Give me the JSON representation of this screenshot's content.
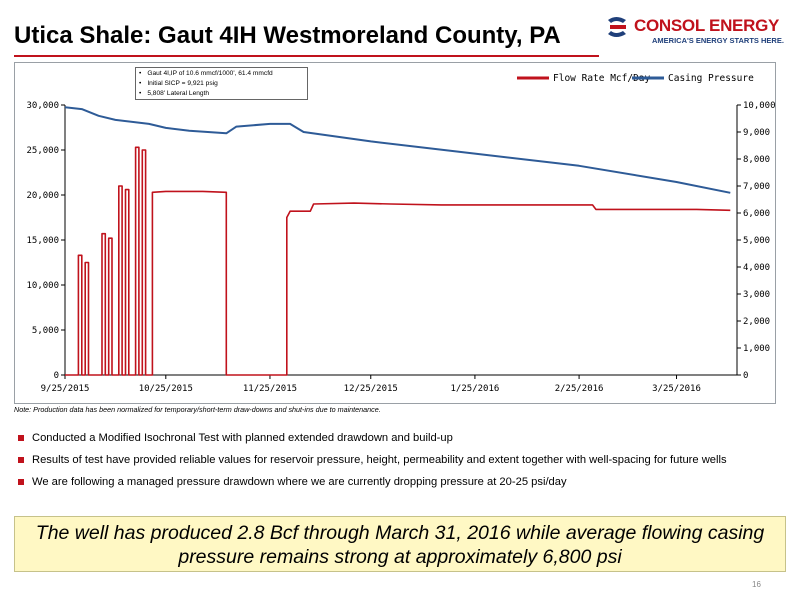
{
  "slide": {
    "title": "Utica Shale: Gaut 4IH Westmoreland County, PA",
    "logo_name": "CONSOL ENERGY",
    "logo_tagline": "AMERICA'S ENERGY STARTS HERE.",
    "note": "Note:  Production data has been normalized for temporary/short-term draw-downs and shut-ins due to maintenance.",
    "bullets": [
      "Conducted a Modified Isochronal Test with planned extended drawdown and build-up",
      "Results of test have provided reliable values for reservoir pressure, height, permeability and extent together with well-spacing for future wells",
      "We are following a managed pressure drawdown where we are currently dropping pressure at 20-25 psi/day"
    ],
    "callout_line1": "The well has produced 2.8 Bcf through March 31, 2016 while average flowing casing",
    "callout_line2": "pressure remains strong at approximately 6,800 psi",
    "page_number": "16",
    "colors": {
      "accent": "#c0121c",
      "navy": "#1f3f7a",
      "callout_bg": "#fff8c4"
    }
  },
  "chart_data": {
    "type": "line",
    "title": "",
    "annotation": [
      "Gaut 4I,IP of 10.6 mmcf/1000', 61.4 mmcfd",
      "Initial SICP = 9,921 psig",
      "5,808' Lateral Length"
    ],
    "x_ticks": [
      "9/25/2015",
      "10/25/2015",
      "11/25/2015",
      "12/25/2015",
      "1/25/2016",
      "2/25/2016",
      "3/25/2016"
    ],
    "x_range": [
      "2015-09-25",
      "2016-04-12"
    ],
    "y_left": {
      "ticks": [
        "0",
        "5,000",
        "10,000",
        "15,000",
        "20,000",
        "25,000",
        "30,000"
      ],
      "min": 0,
      "max": 30000
    },
    "y_right": {
      "ticks": [
        "0",
        "1,000",
        "2,000",
        "3,000",
        "4,000",
        "5,000",
        "6,000",
        "7,000",
        "8,000",
        "9,000",
        "10,000"
      ],
      "min": 0,
      "max": 10000
    },
    "legend_position": "top-right",
    "series": [
      {
        "name": "Flow Rate Mcf/Day",
        "axis": "left",
        "color": "#c0121c",
        "points": [
          [
            "2015-09-25",
            0
          ],
          [
            "2015-09-29",
            0
          ],
          [
            "2015-09-29",
            13300
          ],
          [
            "2015-09-30",
            13300
          ],
          [
            "2015-09-30",
            0
          ],
          [
            "2015-10-01",
            0
          ],
          [
            "2015-10-01",
            12500
          ],
          [
            "2015-10-02",
            12500
          ],
          [
            "2015-10-02",
            0
          ],
          [
            "2015-10-06",
            0
          ],
          [
            "2015-10-06",
            15700
          ],
          [
            "2015-10-07",
            15700
          ],
          [
            "2015-10-07",
            0
          ],
          [
            "2015-10-08",
            0
          ],
          [
            "2015-10-08",
            15200
          ],
          [
            "2015-10-09",
            15200
          ],
          [
            "2015-10-09",
            0
          ],
          [
            "2015-10-11",
            0
          ],
          [
            "2015-10-11",
            21000
          ],
          [
            "2015-10-12",
            21000
          ],
          [
            "2015-10-12",
            0
          ],
          [
            "2015-10-13",
            0
          ],
          [
            "2015-10-13",
            20600
          ],
          [
            "2015-10-14",
            20600
          ],
          [
            "2015-10-14",
            0
          ],
          [
            "2015-10-16",
            0
          ],
          [
            "2015-10-16",
            25300
          ],
          [
            "2015-10-17",
            25300
          ],
          [
            "2015-10-17",
            0
          ],
          [
            "2015-10-18",
            0
          ],
          [
            "2015-10-18",
            25000
          ],
          [
            "2015-10-19",
            25000
          ],
          [
            "2015-10-19",
            0
          ],
          [
            "2015-10-21",
            0
          ],
          [
            "2015-10-21",
            20300
          ],
          [
            "2015-10-25",
            20400
          ],
          [
            "2015-11-05",
            20400
          ],
          [
            "2015-11-12",
            20300
          ],
          [
            "2015-11-12",
            0
          ],
          [
            "2015-11-30",
            0
          ],
          [
            "2015-11-30",
            17500
          ],
          [
            "2015-12-01",
            18200
          ],
          [
            "2015-12-07",
            18200
          ],
          [
            "2015-12-08",
            19000
          ],
          [
            "2015-12-20",
            19100
          ],
          [
            "2015-12-31",
            19000
          ],
          [
            "2016-01-15",
            18900
          ],
          [
            "2016-01-31",
            18900
          ],
          [
            "2016-02-15",
            18900
          ],
          [
            "2016-02-29",
            18900
          ],
          [
            "2016-03-01",
            18400
          ],
          [
            "2016-03-15",
            18400
          ],
          [
            "2016-03-31",
            18400
          ],
          [
            "2016-04-10",
            18300
          ]
        ]
      },
      {
        "name": "Casing Pressure",
        "axis": "right",
        "color": "#2e5b97",
        "points": [
          [
            "2015-09-25",
            9920
          ],
          [
            "2015-09-30",
            9850
          ],
          [
            "2015-10-05",
            9600
          ],
          [
            "2015-10-10",
            9450
          ],
          [
            "2015-10-20",
            9300
          ],
          [
            "2015-10-25",
            9150
          ],
          [
            "2015-11-01",
            9050
          ],
          [
            "2015-11-12",
            8950
          ],
          [
            "2015-11-15",
            9200
          ],
          [
            "2015-11-25",
            9300
          ],
          [
            "2015-12-01",
            9300
          ],
          [
            "2015-12-05",
            9000
          ],
          [
            "2015-12-25",
            8650
          ],
          [
            "2016-01-25",
            8200
          ],
          [
            "2016-02-25",
            7750
          ],
          [
            "2016-03-25",
            7150
          ],
          [
            "2016-04-10",
            6750
          ]
        ]
      }
    ]
  }
}
